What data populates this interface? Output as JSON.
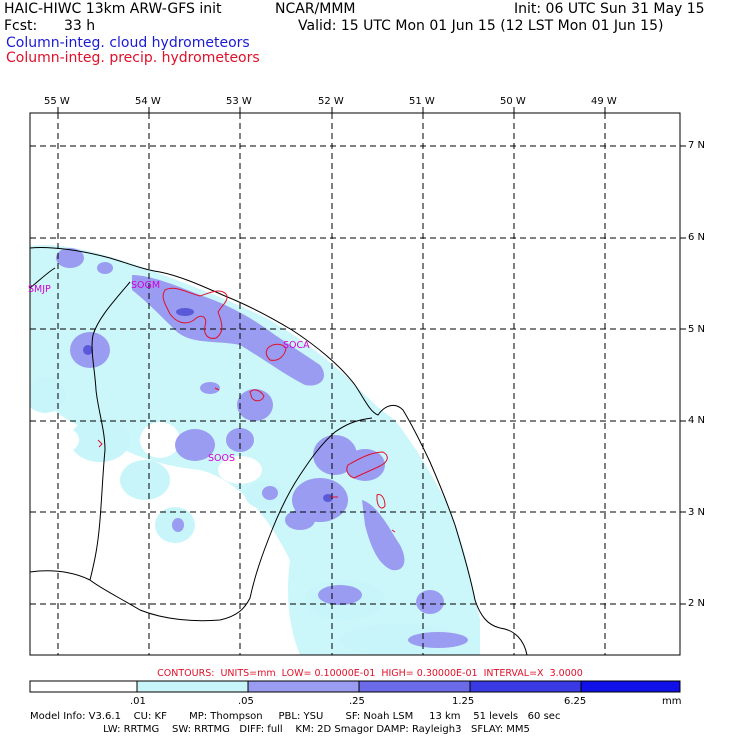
{
  "header": {
    "model": "HAIC-HIWC 13km ARW-GFS init",
    "org": "NCAR/MMM",
    "init": "Init: 06 UTC Sun 31 May 15",
    "fcst_label": "Fcst:",
    "fcst_value": "33 h",
    "valid": "Valid: 15 UTC Mon 01 Jun 15 (12 LST Mon 01 Jun 15)",
    "field1": "Column-integ. cloud hydrometeors",
    "field2": "Column-integ. precip. hydrometeors"
  },
  "map": {
    "lon_labels": [
      "55 W",
      "54 W",
      "53 W",
      "52 W",
      "51 W",
      "50 W",
      "49 W"
    ],
    "lat_labels": [
      "7 N",
      "6 N",
      "5 N",
      "4 N",
      "3 N",
      "2 N"
    ],
    "stations": [
      "SMJP",
      "SOGM",
      "SOCA",
      "SOOS"
    ],
    "colors": {
      "cloud_light": "#c8f5fa",
      "cloud_mid": "#9a9cf2",
      "cloud_dark": "#5a5ad8",
      "precip_contour": "#e0102a",
      "station": "#d400d4"
    }
  },
  "contours_text": "CONTOURS:  UNITS=mm  LOW= 0.10000E-01  HIGH= 0.30000E-01  INTERVAL=X  3.0000",
  "colorbar": {
    "labels": [
      ".01",
      ".05",
      ".25",
      "1.25",
      "6.25"
    ],
    "unit": "mm",
    "colors": [
      "#ffffff",
      "#c8f5fa",
      "#9a9cf2",
      "#6b6bea",
      "#3a3ae4",
      "#1010e8"
    ]
  },
  "model_info": {
    "line1": "Model Info: V3.6.1    CU: KF       MP: Thompson     PBL: YSU       SF: Noah LSM     13 km    51 levels   60 sec",
    "line2": "                       LW: RRTMG    SW: RRTMG   DIFF: full    KM: 2D Smagor DAMP: Rayleigh3   SFLAY: MM5"
  }
}
